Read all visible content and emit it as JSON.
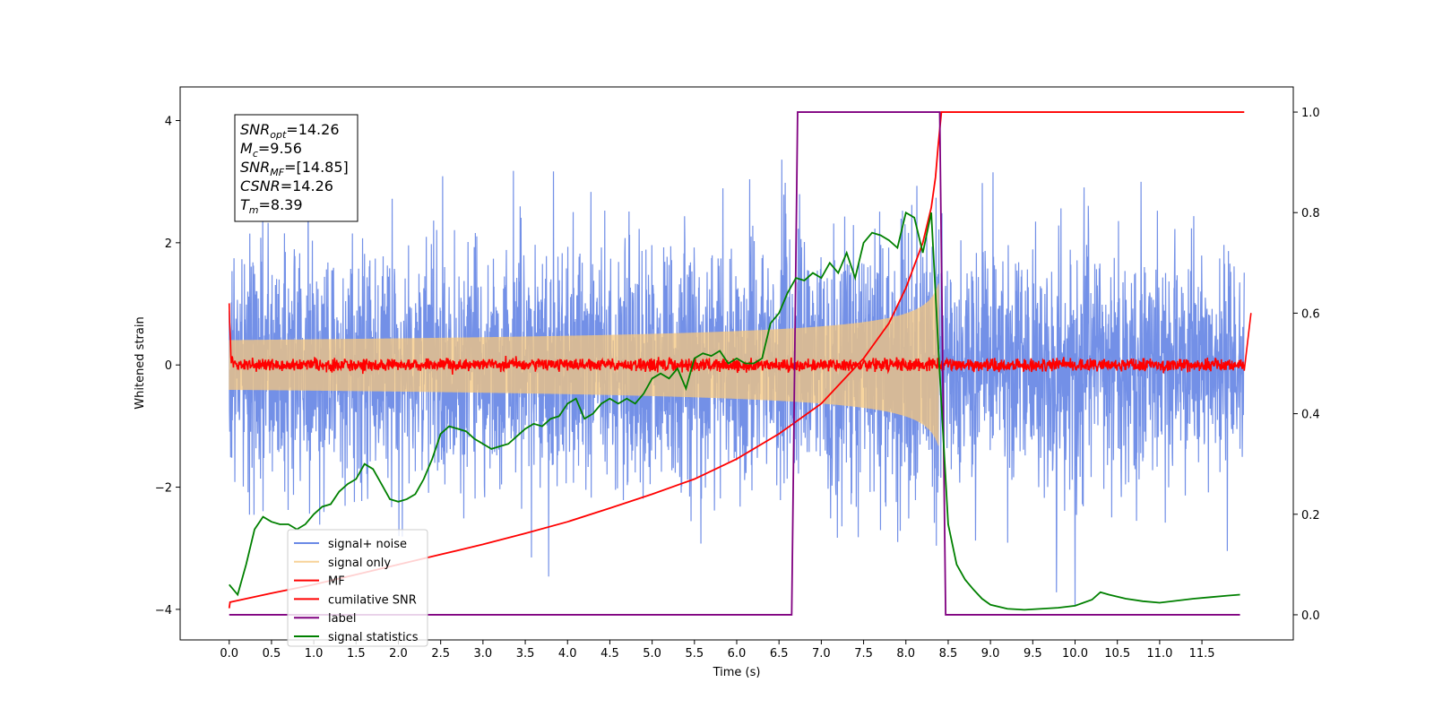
{
  "chart_data": {
    "type": "line",
    "xlabel": "Time (s)",
    "ylabel": "Whitened strain",
    "ylabel_right": "",
    "xlim": [
      -0.58,
      12.58
    ],
    "ylim": [
      -4.5,
      4.55
    ],
    "ylim_right": [
      -0.05,
      1.05
    ],
    "x_ticks": [
      0.0,
      0.5,
      1.0,
      1.5,
      2.0,
      2.5,
      3.0,
      3.5,
      4.0,
      4.5,
      5.0,
      5.5,
      6.0,
      6.5,
      7.0,
      7.5,
      8.0,
      8.5,
      9.0,
      9.5,
      10.0,
      10.5,
      11.0,
      11.5
    ],
    "x_tick_labels": [
      "0.0",
      "0.5",
      "1.0",
      "1.5",
      "2.0",
      "2.5",
      "3.0",
      "3.5",
      "4.0",
      "4.5",
      "5.0",
      "5.5",
      "6.0",
      "6.5",
      "7.0",
      "7.5",
      "8.0",
      "8.5",
      "9.0",
      "9.5",
      "10.0",
      "10.5",
      "11.0",
      "11.5"
    ],
    "y_ticks": [
      -4,
      -2,
      0,
      2,
      4
    ],
    "y_tick_labels": [
      "−4",
      "−2",
      "0",
      "2",
      "4"
    ],
    "y_ticks_right": [
      0.0,
      0.2,
      0.4,
      0.6,
      0.8,
      1.0
    ],
    "y_tick_labels_right": [
      "0.0",
      "0.2",
      "0.4",
      "0.6",
      "0.8",
      "1.0"
    ],
    "grid": false,
    "legend_position": "lower-left",
    "annotation": {
      "lines": [
        {
          "sym": "SNR",
          "sub": "opt",
          "value": "=14.26"
        },
        {
          "sym": "M",
          "sub": "c",
          "value": "=9.56"
        },
        {
          "sym": "SNR",
          "sub": "MF",
          "value": "=[14.85]"
        },
        {
          "sym": "CSNR",
          "sub": "",
          "value": "=14.26"
        },
        {
          "sym": "T",
          "sub": "m",
          "value": "=8.39"
        }
      ]
    },
    "signal_params": {
      "duration": 12.0,
      "noise_sigma": 0.95,
      "noise_peak_max": 4.1,
      "chirp_end": 8.39,
      "chirp_peak_amplitude": 1.35,
      "mf_noise_amplitude": 0.08
    },
    "series": [
      {
        "name": "signal+ noise",
        "color": "#6b8ae6",
        "axis": "left",
        "kind": "noise"
      },
      {
        "name": "signal only",
        "color": "#f5c77e",
        "axis": "left",
        "kind": "chirp"
      },
      {
        "name": "MF",
        "color": "#ff0000",
        "axis": "left",
        "kind": "mf",
        "x": [
          0.0,
          0.02,
          0.05,
          12.0,
          12.05,
          12.08
        ],
        "y": [
          1.0,
          0.1,
          0.0,
          0.0,
          0.1,
          0.85
        ]
      },
      {
        "name": "cumilative SNR",
        "color": "#ff0000",
        "axis": "right",
        "x": [
          0.0,
          0.01,
          0.5,
          1.0,
          1.5,
          2.0,
          2.5,
          3.0,
          3.5,
          4.0,
          4.5,
          5.0,
          5.5,
          6.0,
          6.5,
          7.0,
          7.5,
          7.8,
          8.0,
          8.2,
          8.3,
          8.35,
          8.38,
          8.42,
          12.0
        ],
        "y": [
          0.013,
          0.025,
          0.043,
          0.06,
          0.08,
          0.1,
          0.12,
          0.14,
          0.162,
          0.185,
          0.212,
          0.24,
          0.27,
          0.31,
          0.36,
          0.42,
          0.51,
          0.58,
          0.65,
          0.74,
          0.81,
          0.87,
          0.93,
          1.0,
          1.0
        ]
      },
      {
        "name": "label",
        "color": "#800080",
        "axis": "right",
        "x": [
          0.0,
          6.65,
          6.72,
          8.4,
          8.47,
          11.95
        ],
        "y": [
          0.0,
          0.0,
          1.0,
          1.0,
          0.0,
          0.0
        ]
      },
      {
        "name": "signal statistics",
        "color": "#008000",
        "axis": "right",
        "x": [
          0.0,
          0.1,
          0.2,
          0.3,
          0.4,
          0.5,
          0.6,
          0.7,
          0.8,
          0.9,
          1.0,
          1.1,
          1.2,
          1.3,
          1.4,
          1.5,
          1.6,
          1.7,
          1.8,
          1.9,
          2.0,
          2.1,
          2.2,
          2.3,
          2.4,
          2.5,
          2.6,
          2.7,
          2.8,
          2.9,
          3.0,
          3.1,
          3.2,
          3.3,
          3.4,
          3.5,
          3.6,
          3.7,
          3.8,
          3.9,
          4.0,
          4.1,
          4.2,
          4.3,
          4.4,
          4.5,
          4.6,
          4.7,
          4.8,
          4.9,
          5.0,
          5.1,
          5.2,
          5.3,
          5.4,
          5.5,
          5.6,
          5.7,
          5.8,
          5.9,
          6.0,
          6.1,
          6.2,
          6.3,
          6.4,
          6.5,
          6.6,
          6.7,
          6.8,
          6.9,
          7.0,
          7.1,
          7.2,
          7.3,
          7.4,
          7.5,
          7.6,
          7.7,
          7.8,
          7.9,
          8.0,
          8.1,
          8.2,
          8.3,
          8.4,
          8.5,
          8.6,
          8.7,
          8.8,
          8.9,
          9.0,
          9.2,
          9.4,
          9.6,
          9.8,
          10.0,
          10.2,
          10.3,
          10.4,
          10.6,
          10.8,
          11.0,
          11.2,
          11.4,
          11.6,
          11.8,
          11.95
        ],
        "y": [
          0.06,
          0.04,
          0.1,
          0.17,
          0.195,
          0.185,
          0.18,
          0.18,
          0.17,
          0.18,
          0.2,
          0.215,
          0.22,
          0.245,
          0.26,
          0.27,
          0.3,
          0.29,
          0.26,
          0.23,
          0.225,
          0.23,
          0.24,
          0.27,
          0.31,
          0.36,
          0.375,
          0.37,
          0.365,
          0.35,
          0.34,
          0.33,
          0.335,
          0.34,
          0.355,
          0.37,
          0.38,
          0.375,
          0.39,
          0.395,
          0.42,
          0.43,
          0.39,
          0.4,
          0.42,
          0.43,
          0.42,
          0.43,
          0.42,
          0.44,
          0.47,
          0.48,
          0.47,
          0.49,
          0.45,
          0.51,
          0.52,
          0.515,
          0.525,
          0.5,
          0.51,
          0.5,
          0.5,
          0.51,
          0.58,
          0.6,
          0.64,
          0.67,
          0.665,
          0.68,
          0.67,
          0.7,
          0.68,
          0.72,
          0.67,
          0.74,
          0.76,
          0.755,
          0.745,
          0.73,
          0.8,
          0.79,
          0.72,
          0.8,
          0.48,
          0.18,
          0.1,
          0.07,
          0.05,
          0.032,
          0.02,
          0.012,
          0.01,
          0.012,
          0.014,
          0.018,
          0.03,
          0.045,
          0.04,
          0.032,
          0.027,
          0.024,
          0.028,
          0.032,
          0.035,
          0.038,
          0.04
        ]
      }
    ]
  }
}
